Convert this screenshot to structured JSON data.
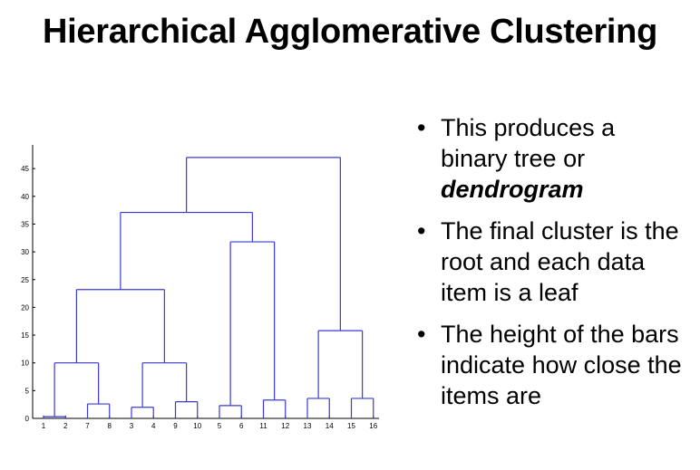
{
  "title": "Hierarchical Agglomerative Clustering",
  "bullets": [
    {
      "text": "This produces a binary tree or ",
      "emphasis": "dendrogram"
    },
    {
      "text": "The final cluster is the root and each data item is a leaf"
    },
    {
      "text": "The height of the bars indicate how close the items are"
    }
  ],
  "dendrogram": {
    "leaf_order": [
      "1",
      "2",
      "7",
      "8",
      "3",
      "4",
      "9",
      "10",
      "5",
      "6",
      "11",
      "12",
      "13",
      "14",
      "15",
      "16"
    ],
    "y_ticks": [
      "0",
      "5",
      "10",
      "15",
      "20",
      "25",
      "30",
      "35",
      "40",
      "45"
    ],
    "ylim": [
      0,
      48
    ],
    "line_color": "#3a3ad6",
    "merges": [
      {
        "left": "L0",
        "right": "L1",
        "height": 0.3
      },
      {
        "left": "L2",
        "right": "L3",
        "height": 2.6
      },
      {
        "left": "L4",
        "right": "L5",
        "height": 2.0
      },
      {
        "left": "L6",
        "right": "L7",
        "height": 3.0
      },
      {
        "left": "L8",
        "right": "L9",
        "height": 2.3
      },
      {
        "left": "L10",
        "right": "L11",
        "height": 3.3
      },
      {
        "left": "L12",
        "right": "L13",
        "height": 3.6
      },
      {
        "left": "L14",
        "right": "L15",
        "height": 3.6
      },
      {
        "left": "M0",
        "right": "M1",
        "height": 10.0
      },
      {
        "left": "M2",
        "right": "M3",
        "height": 10.0
      },
      {
        "left": "M4",
        "right": "M5",
        "height": 31.8
      },
      {
        "left": "M6",
        "right": "M7",
        "height": 15.8
      },
      {
        "left": "M8",
        "right": "M9",
        "height": 23.2
      },
      {
        "left": "M12",
        "right": "M10",
        "height": 37.1
      },
      {
        "left": "M13",
        "right": "M11",
        "height": 47.0
      }
    ]
  }
}
